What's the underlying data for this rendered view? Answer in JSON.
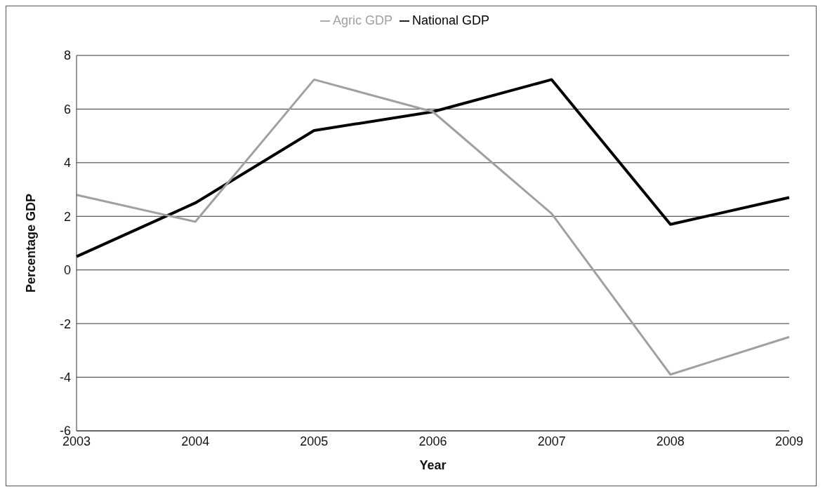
{
  "chart_data": {
    "type": "line",
    "xlabel": "Year",
    "ylabel": "Percentage GDP",
    "categories": [
      "2003",
      "2004",
      "2005",
      "2006",
      "2007",
      "2008",
      "2009"
    ],
    "series": [
      {
        "name": "National GDP",
        "color": "#000000",
        "values": [
          0.5,
          2.5,
          5.2,
          5.9,
          7.1,
          1.7,
          2.7
        ]
      },
      {
        "name": "Agric GDP",
        "color": "#a0a0a0",
        "values": [
          2.8,
          1.8,
          7.1,
          5.9,
          2.1,
          -3.9,
          -2.5
        ]
      }
    ],
    "ylim": [
      -6,
      8
    ],
    "yticks": [
      -6,
      -4,
      -2,
      0,
      2,
      4,
      6,
      8
    ],
    "grid": "y",
    "legend": "top",
    "marker": "none",
    "line_style": "solid"
  }
}
